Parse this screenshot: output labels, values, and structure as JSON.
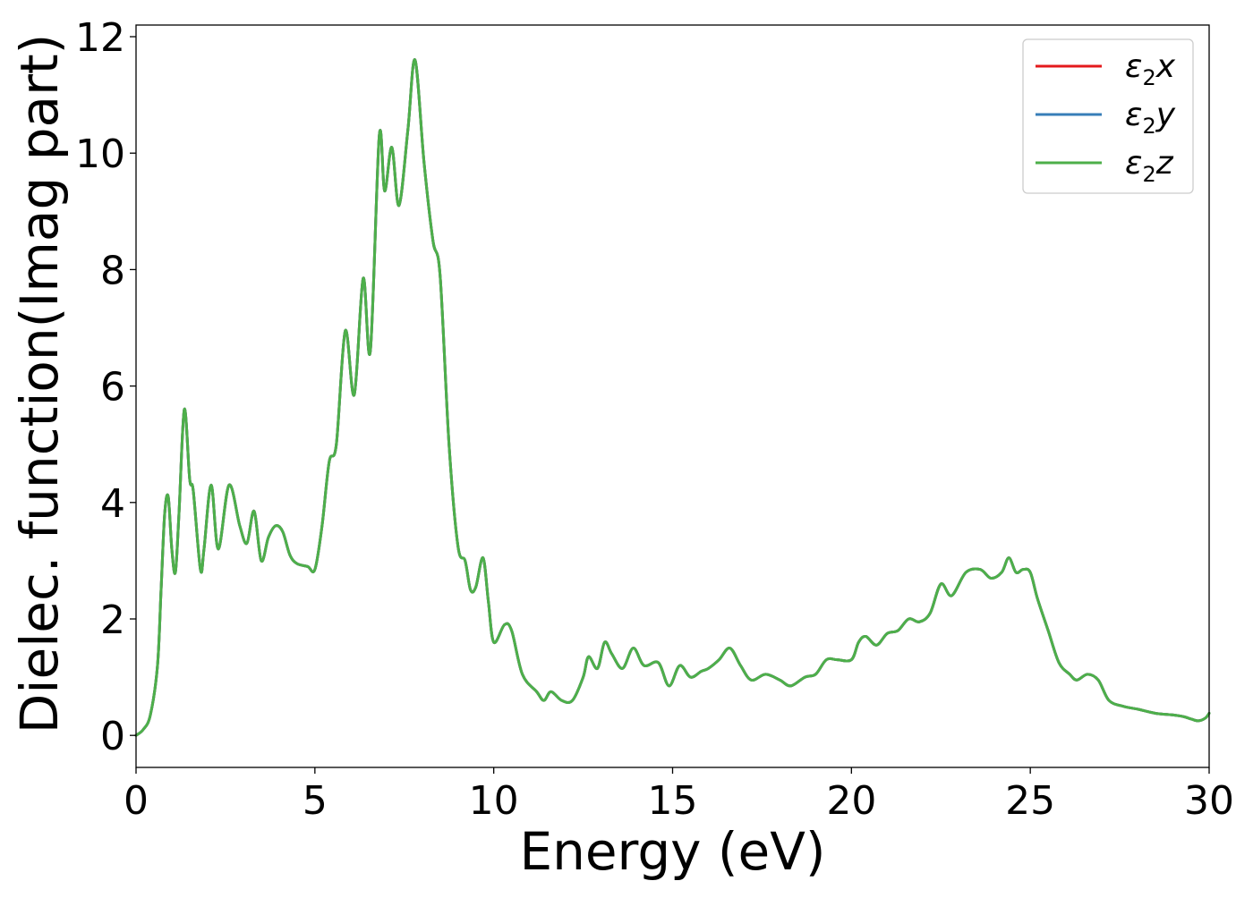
{
  "chart_data": {
    "type": "line",
    "title": "",
    "xlabel": "Energy (eV)",
    "ylabel": "Dielec. function(Imag part)",
    "xlim": [
      0,
      30
    ],
    "ylim": [
      -0.55,
      12.2
    ],
    "xticks": [
      0,
      5,
      10,
      15,
      20,
      25,
      30
    ],
    "yticks": [
      0,
      2,
      4,
      6,
      8,
      10,
      12
    ],
    "xtick_labels": [
      "0",
      "5",
      "10",
      "15",
      "20",
      "25",
      "30"
    ],
    "ytick_labels": [
      "0",
      "2",
      "4",
      "6",
      "8",
      "10",
      "12"
    ],
    "grid": false,
    "legend_position": "top-right",
    "series": [
      {
        "name": "ε2x",
        "label_main": "ε",
        "label_sub": "2",
        "label_tail": "x",
        "color": "#e41a1c",
        "x": [
          0,
          0.2,
          0.4,
          0.6,
          0.7,
          0.8,
          0.9,
          1.0,
          1.1,
          1.2,
          1.35,
          1.5,
          1.6,
          1.8,
          1.9,
          2.1,
          2.3,
          2.6,
          2.9,
          3.1,
          3.3,
          3.5,
          3.7,
          3.9,
          4.1,
          4.3,
          4.5,
          4.8,
          5.0,
          5.2,
          5.4,
          5.6,
          5.85,
          6.1,
          6.35,
          6.55,
          6.8,
          6.95,
          7.15,
          7.35,
          7.6,
          7.8,
          8.05,
          8.3,
          8.5,
          8.75,
          9.0,
          9.2,
          9.35,
          9.5,
          9.7,
          9.85,
          10.0,
          10.3,
          10.5,
          10.8,
          11.2,
          11.4,
          11.6,
          11.9,
          12.2,
          12.5,
          12.65,
          12.9,
          13.1,
          13.3,
          13.6,
          13.9,
          14.2,
          14.6,
          14.9,
          15.2,
          15.5,
          15.8,
          16.0,
          16.3,
          16.6,
          16.9,
          17.2,
          17.6,
          18.0,
          18.3,
          18.7,
          19.0,
          19.3,
          19.6,
          20.0,
          20.2,
          20.4,
          20.7,
          21.0,
          21.3,
          21.6,
          21.9,
          22.2,
          22.5,
          22.8,
          23.2,
          23.6,
          23.9,
          24.2,
          24.4,
          24.6,
          24.8,
          25.0,
          25.2,
          25.5,
          25.8,
          26.1,
          26.3,
          26.6,
          26.9,
          27.2,
          27.6,
          28.0,
          28.5,
          29.0,
          29.3,
          29.5,
          29.7,
          29.9,
          30.0
        ],
        "y": [
          0.0,
          0.1,
          0.35,
          1.2,
          2.5,
          3.8,
          4.1,
          3.2,
          2.8,
          3.8,
          5.6,
          4.4,
          4.2,
          2.85,
          3.2,
          4.3,
          3.2,
          4.3,
          3.6,
          3.3,
          3.85,
          3.0,
          3.4,
          3.6,
          3.5,
          3.1,
          2.95,
          2.9,
          2.85,
          3.6,
          4.7,
          5.0,
          6.95,
          5.85,
          7.85,
          6.6,
          10.3,
          9.35,
          10.1,
          9.1,
          10.4,
          11.6,
          9.85,
          8.5,
          7.9,
          5.0,
          3.25,
          3.0,
          2.5,
          2.55,
          3.05,
          2.3,
          1.6,
          1.9,
          1.8,
          1.05,
          0.75,
          0.6,
          0.75,
          0.6,
          0.6,
          1.0,
          1.35,
          1.15,
          1.6,
          1.4,
          1.15,
          1.5,
          1.2,
          1.25,
          0.85,
          1.2,
          1.0,
          1.1,
          1.15,
          1.3,
          1.5,
          1.2,
          0.95,
          1.05,
          0.95,
          0.85,
          1.0,
          1.05,
          1.3,
          1.3,
          1.3,
          1.6,
          1.7,
          1.55,
          1.75,
          1.8,
          2.0,
          1.95,
          2.1,
          2.6,
          2.4,
          2.8,
          2.85,
          2.7,
          2.8,
          3.05,
          2.8,
          2.85,
          2.8,
          2.35,
          1.8,
          1.25,
          1.05,
          0.95,
          1.05,
          0.95,
          0.6,
          0.5,
          0.45,
          0.38,
          0.35,
          0.32,
          0.28,
          0.25,
          0.3,
          0.38
        ]
      },
      {
        "name": "ε2y",
        "label_main": "ε",
        "label_sub": "2",
        "label_tail": "y",
        "color": "#377eb8",
        "x": [
          0,
          0.2,
          0.4,
          0.6,
          0.7,
          0.8,
          0.9,
          1.0,
          1.1,
          1.2,
          1.35,
          1.5,
          1.6,
          1.8,
          1.9,
          2.1,
          2.3,
          2.6,
          2.9,
          3.1,
          3.3,
          3.5,
          3.7,
          3.9,
          4.1,
          4.3,
          4.5,
          4.8,
          5.0,
          5.2,
          5.4,
          5.6,
          5.85,
          6.1,
          6.35,
          6.55,
          6.8,
          6.95,
          7.15,
          7.35,
          7.6,
          7.8,
          8.05,
          8.3,
          8.5,
          8.75,
          9.0,
          9.2,
          9.35,
          9.5,
          9.7,
          9.85,
          10.0,
          10.3,
          10.5,
          10.8,
          11.2,
          11.4,
          11.6,
          11.9,
          12.2,
          12.5,
          12.65,
          12.9,
          13.1,
          13.3,
          13.6,
          13.9,
          14.2,
          14.6,
          14.9,
          15.2,
          15.5,
          15.8,
          16.0,
          16.3,
          16.6,
          16.9,
          17.2,
          17.6,
          18.0,
          18.3,
          18.7,
          19.0,
          19.3,
          19.6,
          20.0,
          20.2,
          20.4,
          20.7,
          21.0,
          21.3,
          21.6,
          21.9,
          22.2,
          22.5,
          22.8,
          23.2,
          23.6,
          23.9,
          24.2,
          24.4,
          24.6,
          24.8,
          25.0,
          25.2,
          25.5,
          25.8,
          26.1,
          26.3,
          26.6,
          26.9,
          27.2,
          27.6,
          28.0,
          28.5,
          29.0,
          29.3,
          29.5,
          29.7,
          29.9,
          30.0
        ],
        "y": [
          0.0,
          0.1,
          0.35,
          1.2,
          2.5,
          3.8,
          4.1,
          3.2,
          2.8,
          3.8,
          5.6,
          4.4,
          4.2,
          2.85,
          3.2,
          4.3,
          3.2,
          4.3,
          3.6,
          3.3,
          3.85,
          3.0,
          3.4,
          3.6,
          3.5,
          3.1,
          2.95,
          2.9,
          2.85,
          3.6,
          4.7,
          5.0,
          6.95,
          5.85,
          7.85,
          6.6,
          10.3,
          9.35,
          10.1,
          9.1,
          10.4,
          11.6,
          9.85,
          8.5,
          7.9,
          5.0,
          3.25,
          3.0,
          2.5,
          2.55,
          3.05,
          2.3,
          1.6,
          1.9,
          1.8,
          1.05,
          0.75,
          0.6,
          0.75,
          0.6,
          0.6,
          1.0,
          1.35,
          1.15,
          1.6,
          1.4,
          1.15,
          1.5,
          1.2,
          1.25,
          0.85,
          1.2,
          1.0,
          1.1,
          1.15,
          1.3,
          1.5,
          1.2,
          0.95,
          1.05,
          0.95,
          0.85,
          1.0,
          1.05,
          1.3,
          1.3,
          1.3,
          1.6,
          1.7,
          1.55,
          1.75,
          1.8,
          2.0,
          1.95,
          2.1,
          2.6,
          2.4,
          2.8,
          2.85,
          2.7,
          2.8,
          3.05,
          2.8,
          2.85,
          2.8,
          2.35,
          1.8,
          1.25,
          1.05,
          0.95,
          1.05,
          0.95,
          0.6,
          0.5,
          0.45,
          0.38,
          0.35,
          0.32,
          0.28,
          0.25,
          0.3,
          0.38
        ]
      },
      {
        "name": "ε2z",
        "label_main": "ε",
        "label_sub": "2",
        "label_tail": "z",
        "color": "#4daf4a",
        "x": [
          0,
          0.2,
          0.4,
          0.6,
          0.7,
          0.8,
          0.9,
          1.0,
          1.1,
          1.2,
          1.35,
          1.5,
          1.6,
          1.8,
          1.9,
          2.1,
          2.3,
          2.6,
          2.9,
          3.1,
          3.3,
          3.5,
          3.7,
          3.9,
          4.1,
          4.3,
          4.5,
          4.8,
          5.0,
          5.2,
          5.4,
          5.6,
          5.85,
          6.1,
          6.35,
          6.55,
          6.8,
          6.95,
          7.15,
          7.35,
          7.6,
          7.8,
          8.05,
          8.3,
          8.5,
          8.75,
          9.0,
          9.2,
          9.35,
          9.5,
          9.7,
          9.85,
          10.0,
          10.3,
          10.5,
          10.8,
          11.2,
          11.4,
          11.6,
          11.9,
          12.2,
          12.5,
          12.65,
          12.9,
          13.1,
          13.3,
          13.6,
          13.9,
          14.2,
          14.6,
          14.9,
          15.2,
          15.5,
          15.8,
          16.0,
          16.3,
          16.6,
          16.9,
          17.2,
          17.6,
          18.0,
          18.3,
          18.7,
          19.0,
          19.3,
          19.6,
          20.0,
          20.2,
          20.4,
          20.7,
          21.0,
          21.3,
          21.6,
          21.9,
          22.2,
          22.5,
          22.8,
          23.2,
          23.6,
          23.9,
          24.2,
          24.4,
          24.6,
          24.8,
          25.0,
          25.2,
          25.5,
          25.8,
          26.1,
          26.3,
          26.6,
          26.9,
          27.2,
          27.6,
          28.0,
          28.5,
          29.0,
          29.3,
          29.5,
          29.7,
          29.9,
          30.0
        ],
        "y": [
          0.0,
          0.1,
          0.35,
          1.2,
          2.5,
          3.8,
          4.1,
          3.2,
          2.8,
          3.8,
          5.6,
          4.4,
          4.2,
          2.85,
          3.2,
          4.3,
          3.2,
          4.3,
          3.6,
          3.3,
          3.85,
          3.0,
          3.4,
          3.6,
          3.5,
          3.1,
          2.95,
          2.9,
          2.85,
          3.6,
          4.7,
          5.0,
          6.95,
          5.85,
          7.85,
          6.6,
          10.3,
          9.35,
          10.1,
          9.1,
          10.4,
          11.6,
          9.85,
          8.5,
          7.9,
          5.0,
          3.25,
          3.0,
          2.5,
          2.55,
          3.05,
          2.3,
          1.6,
          1.9,
          1.8,
          1.05,
          0.75,
          0.6,
          0.75,
          0.6,
          0.6,
          1.0,
          1.35,
          1.15,
          1.6,
          1.4,
          1.15,
          1.5,
          1.2,
          1.25,
          0.85,
          1.2,
          1.0,
          1.1,
          1.15,
          1.3,
          1.5,
          1.2,
          0.95,
          1.05,
          0.95,
          0.85,
          1.0,
          1.05,
          1.3,
          1.3,
          1.3,
          1.6,
          1.7,
          1.55,
          1.75,
          1.8,
          2.0,
          1.95,
          2.1,
          2.6,
          2.4,
          2.8,
          2.85,
          2.7,
          2.8,
          3.05,
          2.8,
          2.85,
          2.8,
          2.35,
          1.8,
          1.25,
          1.05,
          0.95,
          1.05,
          0.95,
          0.6,
          0.5,
          0.45,
          0.38,
          0.35,
          0.32,
          0.28,
          0.25,
          0.3,
          0.38
        ]
      }
    ]
  }
}
